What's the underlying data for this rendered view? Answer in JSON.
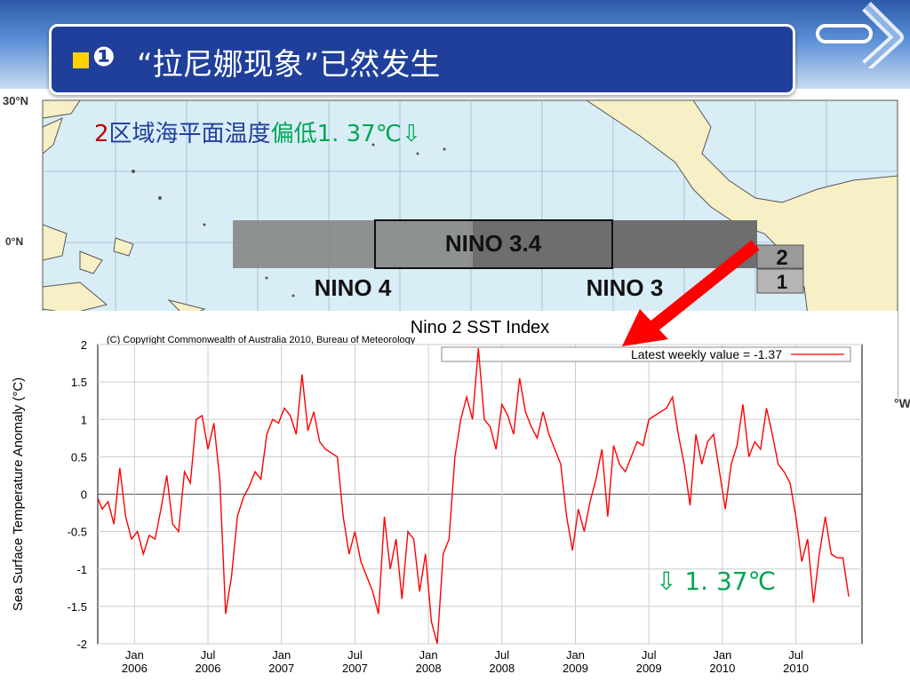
{
  "slide": {
    "title_marker": "❶",
    "title": "“拉尼娜现象”已然发生"
  },
  "map": {
    "lat_30": "30°N",
    "lat_0": "0°N",
    "lon_edge": "°W",
    "region_text": {
      "num": "2",
      "body": "区域海平面温度",
      "low": "偏低1. 37℃⇩"
    },
    "regions": [
      "NINO 3.4",
      "NINO 4",
      "NINO 3",
      "2",
      "1"
    ]
  },
  "note": "⇩ 1. 37℃",
  "colors": {
    "series": "#ff0000",
    "arrow": "#ff0000",
    "highlight": "#00a651",
    "title_bg": "#1f3f9a"
  },
  "chart_data": {
    "type": "line",
    "title": "Nino 2 SST Index",
    "copyright": "(C) Copyright Commonwealth of Australia 2010, Bureau of Meteorology",
    "ylabel": "Sea Surface Temperature Anomaly (°C)",
    "xlabel": "",
    "ylim": [
      -2,
      2
    ],
    "yticks": [
      "2",
      "1.5",
      "1",
      "0.5",
      "0",
      "-0.5",
      "-1",
      "-1.5",
      "-2"
    ],
    "xticks": [
      {
        "m": "Jan",
        "y": "2006"
      },
      {
        "m": "Jul",
        "y": "2006"
      },
      {
        "m": "Jan",
        "y": "2007"
      },
      {
        "m": "Jul",
        "y": "2007"
      },
      {
        "m": "Jan",
        "y": "2008"
      },
      {
        "m": "Jul",
        "y": "2008"
      },
      {
        "m": "Jan",
        "y": "2009"
      },
      {
        "m": "Jul",
        "y": "2009"
      },
      {
        "m": "Jan",
        "y": "2010"
      },
      {
        "m": "Jul",
        "y": "2010"
      }
    ],
    "legend": "Latest weekly value = -1.37",
    "legend_position": "top-right",
    "grid": true,
    "series": [
      {
        "x": [
          2005.75,
          2005.78,
          2005.82,
          2005.86,
          2005.9,
          2005.94,
          2005.98,
          2006.02,
          2006.06,
          2006.1,
          2006.14,
          2006.18,
          2006.22,
          2006.26,
          2006.3,
          2006.34,
          2006.38,
          2006.42,
          2006.46,
          2006.5,
          2006.54,
          2006.58,
          2006.62,
          2006.66,
          2006.7,
          2006.74,
          2006.78,
          2006.82,
          2006.86,
          2006.9,
          2006.94,
          2006.98,
          2007.02,
          2007.06,
          2007.1,
          2007.14,
          2007.18,
          2007.22,
          2007.26,
          2007.3,
          2007.34,
          2007.38,
          2007.42,
          2007.46,
          2007.5,
          2007.54,
          2007.58,
          2007.62,
          2007.66,
          2007.7,
          2007.74,
          2007.78,
          2007.82,
          2007.86,
          2007.9,
          2007.94,
          2007.98,
          2008.02,
          2008.06,
          2008.1,
          2008.14,
          2008.18,
          2008.22,
          2008.26,
          2008.3,
          2008.34,
          2008.38,
          2008.42,
          2008.46,
          2008.5,
          2008.54,
          2008.58,
          2008.62,
          2008.66,
          2008.7,
          2008.74,
          2008.78,
          2008.82,
          2008.86,
          2008.9,
          2008.94,
          2008.98,
          2009.02,
          2009.06,
          2009.1,
          2009.14,
          2009.18,
          2009.22,
          2009.26,
          2009.3,
          2009.34,
          2009.38,
          2009.42,
          2009.46,
          2009.5,
          2009.54,
          2009.58,
          2009.62,
          2009.66,
          2009.7,
          2009.74,
          2009.78,
          2009.82,
          2009.86,
          2009.9,
          2009.94,
          2009.98,
          2010.02,
          2010.06,
          2010.1,
          2010.14,
          2010.18,
          2010.22,
          2010.26,
          2010.3,
          2010.34,
          2010.38,
          2010.42,
          2010.46,
          2010.5,
          2010.54,
          2010.58,
          2010.62,
          2010.66,
          2010.7,
          2010.74,
          2010.78,
          2010.82,
          2010.86
        ],
        "values": [
          -0.05,
          -0.2,
          -0.1,
          -0.4,
          0.35,
          -0.3,
          -0.6,
          -0.5,
          -0.8,
          -0.55,
          -0.6,
          -0.2,
          0.25,
          -0.4,
          -0.5,
          0.3,
          0.15,
          1.0,
          1.05,
          0.6,
          0.95,
          0.2,
          -1.6,
          -1.1,
          -0.3,
          -0.05,
          0.1,
          0.3,
          0.2,
          0.8,
          1.0,
          0.95,
          1.15,
          1.05,
          0.8,
          1.6,
          0.85,
          1.1,
          0.7,
          0.6,
          0.55,
          0.5,
          -0.3,
          -0.8,
          -0.5,
          -0.9,
          -1.1,
          -1.3,
          -1.6,
          -0.3,
          -1.0,
          -0.6,
          -1.4,
          -0.5,
          -0.6,
          -1.3,
          -0.8,
          -1.7,
          -2.0,
          -0.8,
          -0.6,
          0.5,
          1.0,
          1.3,
          1.0,
          1.95,
          1.0,
          0.9,
          0.6,
          1.2,
          1.05,
          0.8,
          1.55,
          1.1,
          0.9,
          0.75,
          1.1,
          0.8,
          0.6,
          0.4,
          -0.3,
          -0.75,
          -0.2,
          -0.5,
          -0.1,
          0.2,
          0.6,
          -0.3,
          0.65,
          0.4,
          0.3,
          0.5,
          0.7,
          0.65,
          1.0,
          1.05,
          1.1,
          1.15,
          1.3,
          0.8,
          0.4,
          -0.15,
          0.8,
          0.4,
          0.7,
          0.8,
          0.3,
          -0.2,
          0.4,
          0.65,
          1.2,
          0.5,
          0.7,
          0.6,
          1.15,
          0.8,
          0.4,
          0.3,
          0.15,
          -0.3,
          -0.9,
          -0.6,
          -1.45,
          -0.8,
          -0.3,
          -0.8,
          -0.85,
          -0.85,
          -1.37
        ]
      }
    ]
  }
}
